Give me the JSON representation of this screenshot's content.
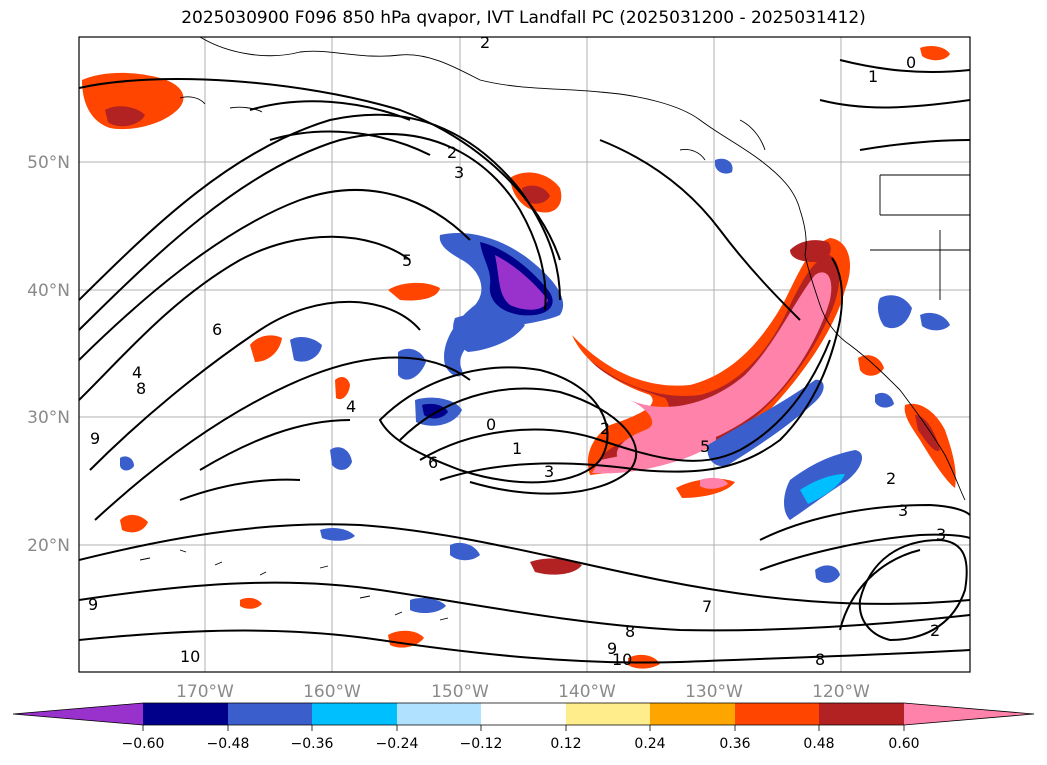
{
  "title": "2025030900 F096 850 hPa qvapor, IVT Landfall PC (2025031200 - 2025031412)",
  "map": {
    "lat_labels": [
      "50°N",
      "40°N",
      "30°N",
      "20°N"
    ],
    "lon_labels": [
      "170°W",
      "160°W",
      "150°W",
      "140°W",
      "130°W",
      "120°W"
    ]
  },
  "colorbar": {
    "tick_labels": [
      "−0.60",
      "−0.48",
      "−0.36",
      "−0.24",
      "−0.12",
      "0.12",
      "0.24",
      "0.36",
      "0.48",
      "0.60"
    ],
    "colors": [
      "#9932CC",
      "#00008B",
      "#3A5FCD",
      "#00BFFF",
      "#B0E2FF",
      "#FFFFFF",
      "#FFEC8B",
      "#FFA500",
      "#FF4500",
      "#B22222",
      "#FF82AB"
    ]
  },
  "contour_labels": [
    "2",
    "3",
    "5",
    "6",
    "4",
    "8",
    "9",
    "0",
    "1",
    "2",
    "3",
    "5",
    "6",
    "7",
    "8",
    "9",
    "10",
    "1",
    "0",
    "2",
    "3",
    "2",
    "3",
    "4",
    "8",
    "9",
    "10",
    "2"
  ]
}
